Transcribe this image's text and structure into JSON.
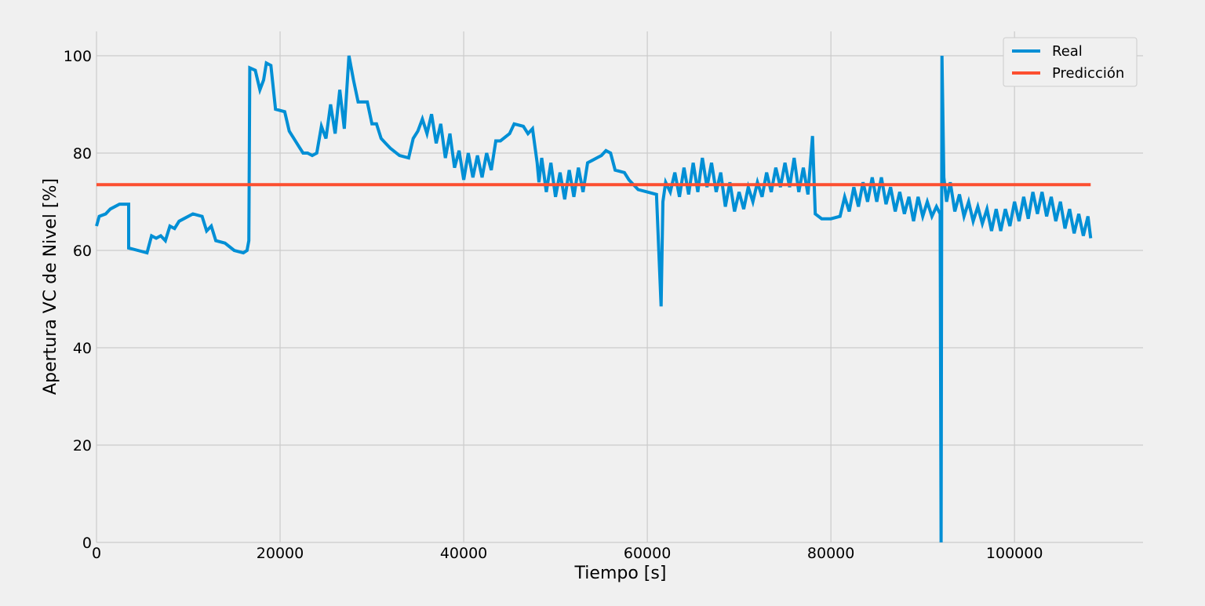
{
  "chart_data": {
    "type": "line",
    "title": "",
    "xlabel": "Tiempo [s]",
    "ylabel": "Apertura VC de Nivel [%]",
    "xlim": [
      0,
      114000
    ],
    "ylim": [
      0,
      105
    ],
    "x_ticks": [
      0,
      20000,
      40000,
      60000,
      80000,
      100000
    ],
    "x_tick_labels": [
      "0",
      "20000",
      "40000",
      "60000",
      "80000",
      "100000"
    ],
    "y_ticks": [
      0,
      20,
      40,
      60,
      80,
      100
    ],
    "y_tick_labels": [
      "0",
      "20",
      "40",
      "60",
      "80",
      "100"
    ],
    "grid": true,
    "legend_position": "top-right",
    "series": [
      {
        "name": "Real",
        "color": "#008fd5",
        "style": "line",
        "points": [
          [
            0,
            65
          ],
          [
            300,
            67
          ],
          [
            1000,
            67.5
          ],
          [
            1500,
            68.5
          ],
          [
            2500,
            69.5
          ],
          [
            3500,
            69.5
          ],
          [
            3500,
            60.5
          ],
          [
            4500,
            60
          ],
          [
            5500,
            59.5
          ],
          [
            6000,
            63
          ],
          [
            6500,
            62.5
          ],
          [
            7000,
            63
          ],
          [
            7500,
            62
          ],
          [
            8000,
            65
          ],
          [
            8500,
            64.5
          ],
          [
            9000,
            66
          ],
          [
            9500,
            66.5
          ],
          [
            10500,
            67.5
          ],
          [
            11500,
            67
          ],
          [
            12000,
            64
          ],
          [
            12500,
            65
          ],
          [
            13000,
            62
          ],
          [
            14000,
            61.5
          ],
          [
            15000,
            60
          ],
          [
            16000,
            59.5
          ],
          [
            16400,
            60
          ],
          [
            16600,
            62
          ],
          [
            16700,
            97.5
          ],
          [
            17300,
            97
          ],
          [
            17800,
            93
          ],
          [
            18200,
            95
          ],
          [
            18500,
            98.5
          ],
          [
            19000,
            98
          ],
          [
            19500,
            89
          ],
          [
            20500,
            88.5
          ],
          [
            21000,
            84.5
          ],
          [
            21500,
            83
          ],
          [
            22000,
            81.5
          ],
          [
            22500,
            80
          ],
          [
            23000,
            80
          ],
          [
            23500,
            79.5
          ],
          [
            24000,
            80
          ],
          [
            24500,
            85.5
          ],
          [
            25000,
            83
          ],
          [
            25500,
            90
          ],
          [
            26000,
            84
          ],
          [
            26500,
            93
          ],
          [
            27000,
            85
          ],
          [
            27500,
            100
          ],
          [
            28000,
            95
          ],
          [
            28500,
            90.5
          ],
          [
            29500,
            90.5
          ],
          [
            30000,
            86
          ],
          [
            30500,
            86
          ],
          [
            31000,
            83
          ],
          [
            31500,
            82
          ],
          [
            32000,
            81
          ],
          [
            33000,
            79.5
          ],
          [
            34000,
            79
          ],
          [
            34500,
            83
          ],
          [
            35000,
            84.5
          ],
          [
            35500,
            87
          ],
          [
            36000,
            84
          ],
          [
            36500,
            88
          ],
          [
            37000,
            82
          ],
          [
            37500,
            86
          ],
          [
            38000,
            79
          ],
          [
            38500,
            84
          ],
          [
            39000,
            77
          ],
          [
            39500,
            80.5
          ],
          [
            40000,
            74.5
          ],
          [
            40500,
            80
          ],
          [
            41000,
            75
          ],
          [
            41500,
            79.5
          ],
          [
            42000,
            75
          ],
          [
            42500,
            80
          ],
          [
            43000,
            76.5
          ],
          [
            43500,
            82.5
          ],
          [
            44000,
            82.5
          ],
          [
            45000,
            84
          ],
          [
            45500,
            86
          ],
          [
            46500,
            85.5
          ],
          [
            47000,
            84
          ],
          [
            47500,
            85
          ],
          [
            48000,
            78
          ],
          [
            48200,
            74
          ],
          [
            48500,
            79
          ],
          [
            49000,
            72
          ],
          [
            49500,
            78
          ],
          [
            50000,
            71
          ],
          [
            50500,
            76
          ],
          [
            51000,
            70.5
          ],
          [
            51500,
            76.5
          ],
          [
            52000,
            71
          ],
          [
            52500,
            77
          ],
          [
            53000,
            72
          ],
          [
            53500,
            78
          ],
          [
            54000,
            78.5
          ],
          [
            55000,
            79.5
          ],
          [
            55500,
            80.5
          ],
          [
            56000,
            80
          ],
          [
            56500,
            76.5
          ],
          [
            57500,
            76
          ],
          [
            58000,
            74.5
          ],
          [
            59000,
            72.5
          ],
          [
            60000,
            72
          ],
          [
            61000,
            71.5
          ],
          [
            61500,
            48.5
          ],
          [
            61700,
            70
          ],
          [
            62000,
            74
          ],
          [
            62500,
            72
          ],
          [
            63000,
            76
          ],
          [
            63500,
            71
          ],
          [
            64000,
            77
          ],
          [
            64500,
            71.5
          ],
          [
            65000,
            78
          ],
          [
            65500,
            72
          ],
          [
            66000,
            79
          ],
          [
            66500,
            73
          ],
          [
            67000,
            78
          ],
          [
            67500,
            72
          ],
          [
            68000,
            76
          ],
          [
            68500,
            69
          ],
          [
            69000,
            74
          ],
          [
            69500,
            68
          ],
          [
            70000,
            72
          ],
          [
            70500,
            68.5
          ],
          [
            71000,
            73
          ],
          [
            71500,
            70
          ],
          [
            72000,
            74
          ],
          [
            72500,
            71
          ],
          [
            73000,
            76
          ],
          [
            73500,
            72
          ],
          [
            74000,
            77
          ],
          [
            74500,
            73
          ],
          [
            75000,
            78
          ],
          [
            75500,
            73
          ],
          [
            76000,
            79
          ],
          [
            76500,
            72
          ],
          [
            77000,
            77
          ],
          [
            77500,
            71.5
          ],
          [
            78000,
            83.5
          ],
          [
            78300,
            67.5
          ],
          [
            79000,
            66.5
          ],
          [
            80000,
            66.5
          ],
          [
            81000,
            67
          ],
          [
            81500,
            71
          ],
          [
            82000,
            68
          ],
          [
            82500,
            73
          ],
          [
            83000,
            69
          ],
          [
            83500,
            74
          ],
          [
            84000,
            70
          ],
          [
            84500,
            75
          ],
          [
            85000,
            70
          ],
          [
            85500,
            75
          ],
          [
            86000,
            69.5
          ],
          [
            86500,
            73
          ],
          [
            87000,
            68
          ],
          [
            87500,
            72
          ],
          [
            88000,
            67.5
          ],
          [
            88500,
            71
          ],
          [
            89000,
            66
          ],
          [
            89500,
            71
          ],
          [
            90000,
            67
          ],
          [
            90500,
            70
          ],
          [
            91000,
            67
          ],
          [
            91500,
            69
          ],
          [
            91900,
            67.5
          ],
          [
            92000,
            0
          ],
          [
            92100,
            100
          ],
          [
            92300,
            75
          ],
          [
            92600,
            70
          ],
          [
            93000,
            74
          ],
          [
            93500,
            68
          ],
          [
            94000,
            71.5
          ],
          [
            94500,
            67
          ],
          [
            95000,
            70
          ],
          [
            95500,
            66
          ],
          [
            96000,
            69
          ],
          [
            96500,
            65.5
          ],
          [
            97000,
            68.5
          ],
          [
            97500,
            64
          ],
          [
            98000,
            68.5
          ],
          [
            98500,
            64
          ],
          [
            99000,
            68.5
          ],
          [
            99500,
            65
          ],
          [
            100000,
            70
          ],
          [
            100500,
            66
          ],
          [
            101000,
            71
          ],
          [
            101500,
            66.5
          ],
          [
            102000,
            72
          ],
          [
            102500,
            67.5
          ],
          [
            103000,
            72
          ],
          [
            103500,
            67
          ],
          [
            104000,
            71
          ],
          [
            104500,
            66
          ],
          [
            105000,
            70
          ],
          [
            105500,
            64.5
          ],
          [
            106000,
            68.5
          ],
          [
            106500,
            63.5
          ],
          [
            107000,
            67.5
          ],
          [
            107500,
            63
          ],
          [
            108000,
            67
          ],
          [
            108300,
            62.5
          ]
        ]
      },
      {
        "name": "Predicción",
        "color": "#fc4f30",
        "style": "line",
        "points": [
          [
            0,
            73.5
          ],
          [
            108300,
            73.5
          ]
        ]
      }
    ]
  }
}
